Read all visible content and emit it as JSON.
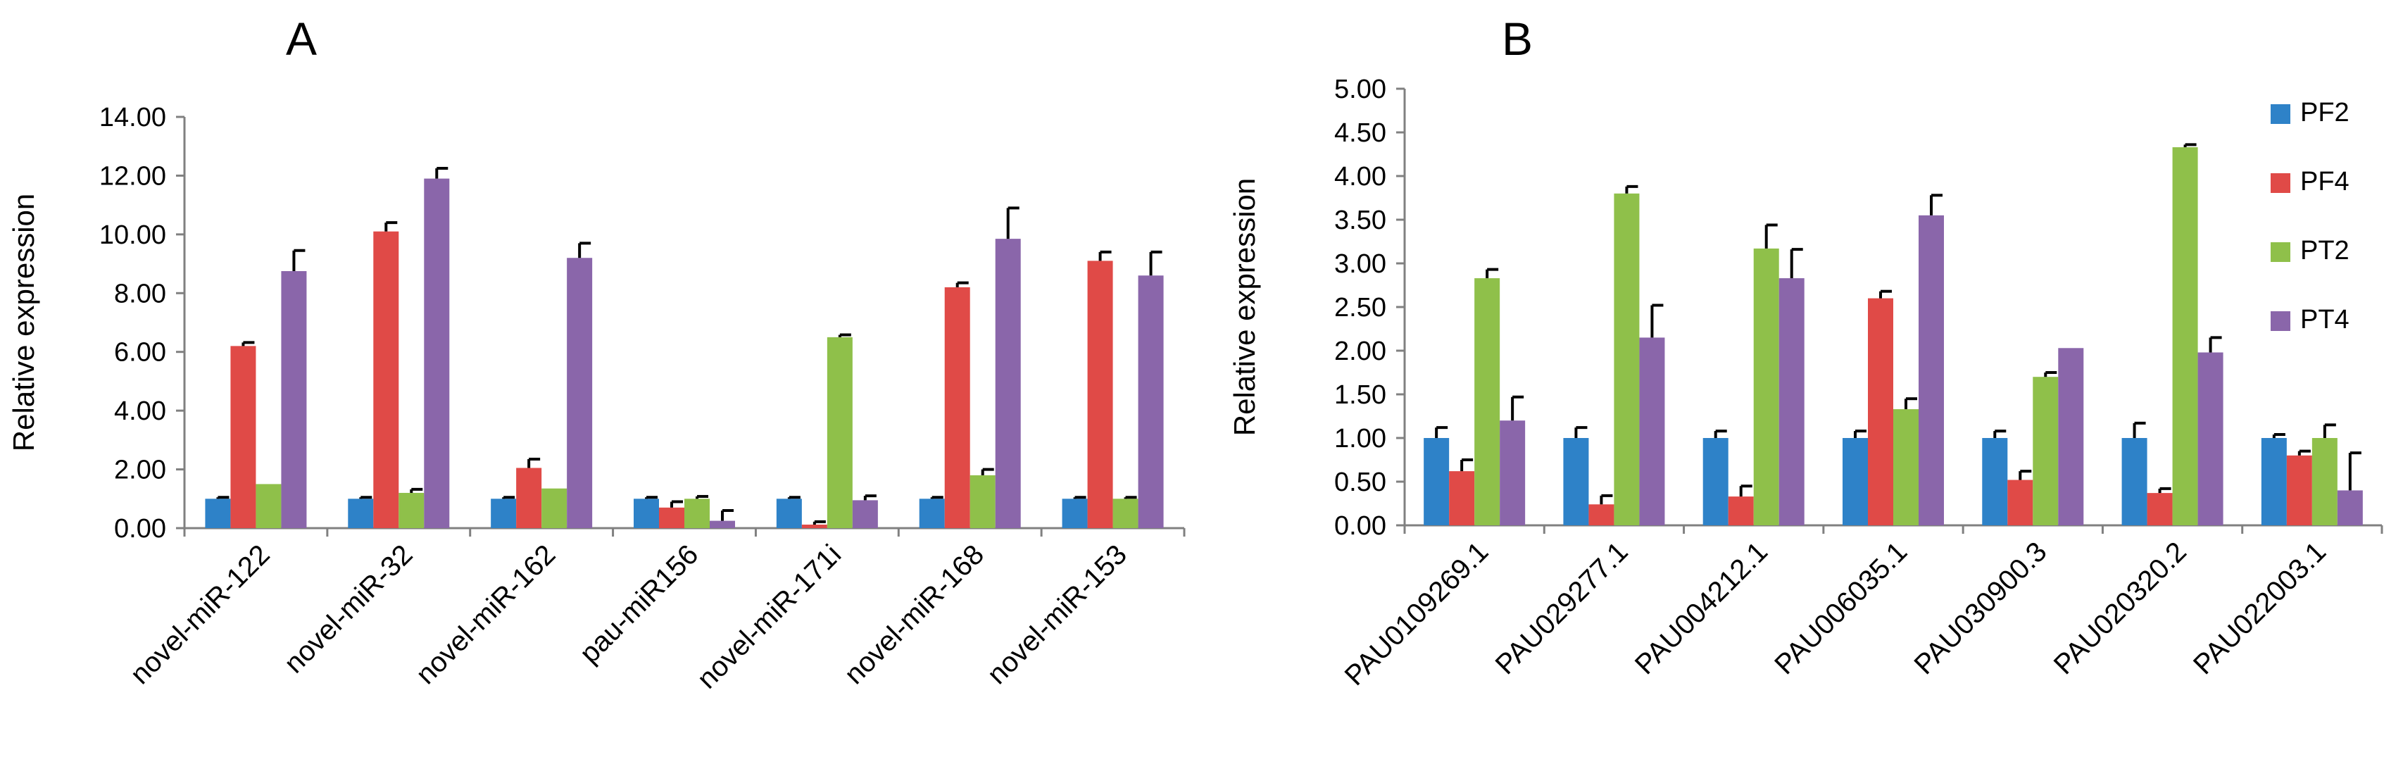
{
  "chart_data": [
    {
      "type": "bar",
      "panel_label": "A",
      "title": "",
      "xlabel": "",
      "ylabel": "Relative expression",
      "ylim": [
        0,
        14
      ],
      "yticks": [
        "0.00",
        "2.00",
        "4.00",
        "6.00",
        "8.00",
        "10.00",
        "12.00",
        "14.00"
      ],
      "categories": [
        "novel-miR-122",
        "novel-miR-32",
        "novel-miR-162",
        "pau-miR156",
        "novel-miR-171i",
        "novel-miR-168",
        "novel-miR-153"
      ],
      "series": [
        {
          "name": "PF2",
          "color": "#2e82c8",
          "values": [
            1.0,
            1.0,
            1.0,
            1.0,
            1.0,
            1.0,
            1.0
          ],
          "errors": [
            0.05,
            0.05,
            0.05,
            0.05,
            0.05,
            0.05,
            0.05
          ]
        },
        {
          "name": "PF4",
          "color": "#e04a47",
          "values": [
            6.2,
            10.1,
            2.05,
            0.7,
            0.12,
            8.2,
            9.1
          ],
          "errors": [
            0.12,
            0.3,
            0.3,
            0.2,
            0.1,
            0.15,
            0.3
          ]
        },
        {
          "name": "PT2",
          "color": "#8fc04a",
          "values": [
            1.5,
            1.2,
            1.35,
            1.0,
            6.5,
            1.8,
            1.0
          ],
          "errors": [
            0.0,
            0.12,
            0.0,
            0.08,
            0.08,
            0.2,
            0.05
          ]
        },
        {
          "name": "PT4",
          "color": "#8a66aa",
          "values": [
            8.75,
            11.9,
            9.2,
            0.25,
            0.95,
            9.85,
            8.6
          ],
          "errors": [
            0.7,
            0.35,
            0.5,
            0.35,
            0.15,
            1.05,
            0.8
          ]
        }
      ],
      "legend": "none"
    },
    {
      "type": "bar",
      "panel_label": "B",
      "title": "",
      "xlabel": "",
      "ylabel": "Relative expression",
      "ylim": [
        0,
        5
      ],
      "yticks": [
        "0.00",
        "0.50",
        "1.00",
        "1.50",
        "2.00",
        "2.50",
        "3.00",
        "3.50",
        "4.00",
        "4.50",
        "5.00"
      ],
      "categories": [
        "PAU0109269.1",
        "PAU029277.1",
        "PAU004212.1",
        "PAU006035.1",
        "PAU030900.3",
        "PAU020320.2",
        "PAU022003.1"
      ],
      "series": [
        {
          "name": "PF2",
          "color": "#2e82c8",
          "values": [
            1.0,
            1.0,
            1.0,
            1.0,
            1.0,
            1.0,
            1.0
          ],
          "errors": [
            0.12,
            0.12,
            0.08,
            0.08,
            0.08,
            0.17,
            0.04
          ]
        },
        {
          "name": "PF4",
          "color": "#e04a47",
          "values": [
            0.62,
            0.24,
            0.33,
            2.6,
            0.52,
            0.37,
            0.8
          ],
          "errors": [
            0.13,
            0.1,
            0.12,
            0.08,
            0.1,
            0.05,
            0.05
          ]
        },
        {
          "name": "PT2",
          "color": "#8fc04a",
          "values": [
            2.83,
            3.8,
            3.17,
            1.33,
            1.7,
            4.33,
            1.0
          ],
          "errors": [
            0.1,
            0.08,
            0.27,
            0.12,
            0.05,
            0.03,
            0.15
          ]
        },
        {
          "name": "PT4",
          "color": "#8a66aa",
          "values": [
            1.2,
            2.15,
            2.83,
            3.55,
            2.03,
            1.98,
            0.4
          ],
          "errors": [
            0.27,
            0.37,
            0.33,
            0.23,
            0.0,
            0.17,
            0.43
          ]
        }
      ],
      "legend": "top-right"
    }
  ]
}
